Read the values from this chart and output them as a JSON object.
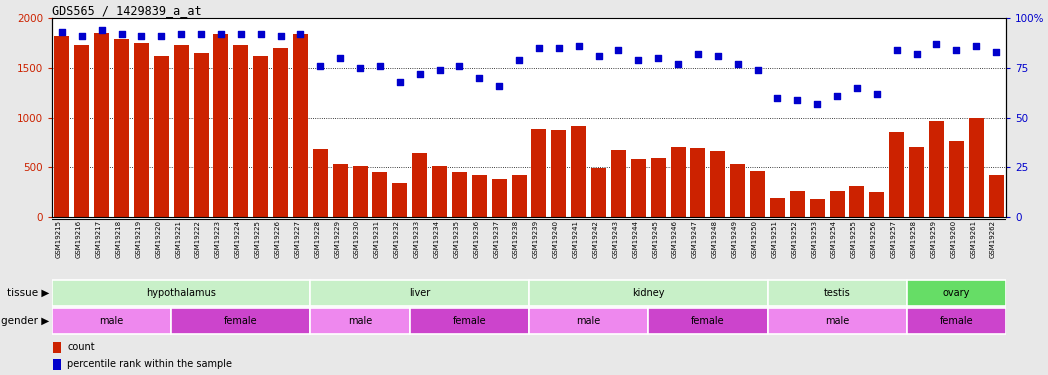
{
  "title": "GDS565 / 1429839_a_at",
  "samples": [
    "GSM19215",
    "GSM19216",
    "GSM19217",
    "GSM19218",
    "GSM19219",
    "GSM19220",
    "GSM19221",
    "GSM19222",
    "GSM19223",
    "GSM19224",
    "GSM19225",
    "GSM19226",
    "GSM19227",
    "GSM19228",
    "GSM19229",
    "GSM19230",
    "GSM19231",
    "GSM19232",
    "GSM19233",
    "GSM19234",
    "GSM19235",
    "GSM19236",
    "GSM19237",
    "GSM19238",
    "GSM19239",
    "GSM19240",
    "GSM19241",
    "GSM19242",
    "GSM19243",
    "GSM19244",
    "GSM19245",
    "GSM19246",
    "GSM19247",
    "GSM19248",
    "GSM19249",
    "GSM19250",
    "GSM19251",
    "GSM19252",
    "GSM19253",
    "GSM19254",
    "GSM19255",
    "GSM19256",
    "GSM19257",
    "GSM19258",
    "GSM19259",
    "GSM19260",
    "GSM19261",
    "GSM19262"
  ],
  "counts": [
    1820,
    1730,
    1850,
    1790,
    1750,
    1620,
    1730,
    1650,
    1840,
    1730,
    1620,
    1700,
    1840,
    680,
    530,
    510,
    450,
    340,
    640,
    510,
    450,
    420,
    380,
    420,
    880,
    870,
    910,
    490,
    670,
    580,
    590,
    700,
    690,
    660,
    530,
    460,
    195,
    260,
    185,
    260,
    310,
    250,
    850,
    700,
    960,
    760,
    1000,
    420
  ],
  "percentile": [
    93,
    91,
    94,
    92,
    91,
    91,
    92,
    92,
    92,
    92,
    92,
    91,
    92,
    76,
    80,
    75,
    76,
    68,
    72,
    74,
    76,
    70,
    66,
    79,
    85,
    85,
    86,
    81,
    84,
    79,
    80,
    77,
    82,
    81,
    77,
    74,
    60,
    59,
    57,
    61,
    65,
    62,
    84,
    82,
    87,
    84,
    86,
    83
  ],
  "tissue_groups": [
    {
      "label": "hypothalamus",
      "start": 0,
      "end": 12,
      "color": "#c8f0c8"
    },
    {
      "label": "liver",
      "start": 13,
      "end": 23,
      "color": "#c8f0c8"
    },
    {
      "label": "kidney",
      "start": 24,
      "end": 35,
      "color": "#c8f0c8"
    },
    {
      "label": "testis",
      "start": 36,
      "end": 42,
      "color": "#c8f0c8"
    },
    {
      "label": "ovary",
      "start": 43,
      "end": 47,
      "color": "#66dd66"
    }
  ],
  "gender_groups": [
    {
      "label": "male",
      "start": 0,
      "end": 5,
      "color": "#ee88ee"
    },
    {
      "label": "female",
      "start": 6,
      "end": 12,
      "color": "#cc44cc"
    },
    {
      "label": "male",
      "start": 13,
      "end": 17,
      "color": "#ee88ee"
    },
    {
      "label": "female",
      "start": 18,
      "end": 23,
      "color": "#cc44cc"
    },
    {
      "label": "male",
      "start": 24,
      "end": 29,
      "color": "#ee88ee"
    },
    {
      "label": "female",
      "start": 30,
      "end": 35,
      "color": "#cc44cc"
    },
    {
      "label": "male",
      "start": 36,
      "end": 42,
      "color": "#ee88ee"
    },
    {
      "label": "female",
      "start": 43,
      "end": 47,
      "color": "#cc44cc"
    }
  ],
  "bar_color": "#cc2200",
  "dot_color": "#0000cc",
  "left_ylim": [
    0,
    2000
  ],
  "right_ylim": [
    0,
    100
  ],
  "left_yticks": [
    0,
    500,
    1000,
    1500,
    2000
  ],
  "right_yticks": [
    0,
    25,
    50,
    75,
    100
  ],
  "right_yticklabels": [
    "0",
    "25",
    "50",
    "75",
    "100%"
  ],
  "background_color": "#e8e8e8",
  "plot_bg_color": "#ffffff"
}
